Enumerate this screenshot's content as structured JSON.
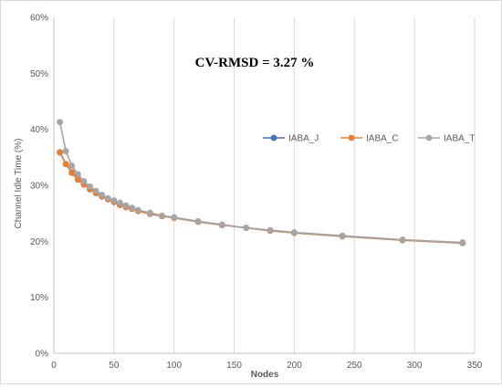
{
  "chart_data": {
    "type": "line",
    "title": "",
    "annotation": "CV-RMSD = 3.27 %",
    "xlabel": "Nodes",
    "ylabel": "Channel Idle Time (%)",
    "xlim": [
      0,
      350
    ],
    "ylim": [
      0,
      60
    ],
    "x_ticks": [
      0,
      50,
      100,
      150,
      200,
      250,
      300,
      350
    ],
    "x_tick_labels": [
      "0",
      "50",
      "100",
      "150",
      "200",
      "250",
      "300",
      "350"
    ],
    "y_ticks": [
      0,
      10,
      20,
      30,
      40,
      50,
      60
    ],
    "y_tick_labels": [
      "0%",
      "10%",
      "20%",
      "30%",
      "40%",
      "50%",
      "60%"
    ],
    "grid": "vertical",
    "legend_position": "center-right",
    "series": [
      {
        "name": "IABA_J",
        "color": "#4472C4",
        "x": [
          5,
          10,
          15,
          20,
          25,
          30,
          35,
          40,
          45,
          50,
          55,
          60,
          65,
          70,
          80,
          90,
          100,
          120,
          140,
          160,
          180,
          200,
          240,
          290,
          340
        ],
        "y": [
          35.9,
          33.8,
          32.3,
          31.0,
          30.2,
          29.3,
          28.6,
          28.0,
          27.5,
          27.0,
          26.5,
          26.1,
          25.8,
          25.5,
          24.9,
          24.5,
          24.2,
          23.5,
          22.9,
          22.4,
          21.9,
          21.5,
          20.9,
          20.2,
          19.7
        ]
      },
      {
        "name": "IABA_C",
        "color": "#ED7D31",
        "x": [
          5,
          10,
          15,
          20,
          25,
          30,
          35,
          40,
          45,
          50,
          55,
          60,
          65,
          70,
          80,
          90,
          100,
          120,
          140,
          160,
          180,
          200,
          240,
          290,
          340
        ],
        "y": [
          35.9,
          33.8,
          32.2,
          31.0,
          30.1,
          29.3,
          28.6,
          28.0,
          27.5,
          27.0,
          26.5,
          26.1,
          25.8,
          25.4,
          24.9,
          24.5,
          24.2,
          23.5,
          22.9,
          22.4,
          21.9,
          21.5,
          20.9,
          20.2,
          19.7
        ]
      },
      {
        "name": "IABA_T",
        "color": "#A5A5A5",
        "x": [
          5,
          10,
          15,
          20,
          25,
          30,
          35,
          40,
          45,
          50,
          55,
          60,
          65,
          70,
          80,
          90,
          100,
          120,
          140,
          160,
          180,
          200,
          240,
          290,
          340
        ],
        "y": [
          41.3,
          36.1,
          33.5,
          32.0,
          30.7,
          29.8,
          29.0,
          28.3,
          27.7,
          27.3,
          26.9,
          26.4,
          26.0,
          25.6,
          25.1,
          24.6,
          24.3,
          23.6,
          23.0,
          22.4,
          22.0,
          21.6,
          21.0,
          20.3,
          19.8
        ]
      }
    ]
  }
}
